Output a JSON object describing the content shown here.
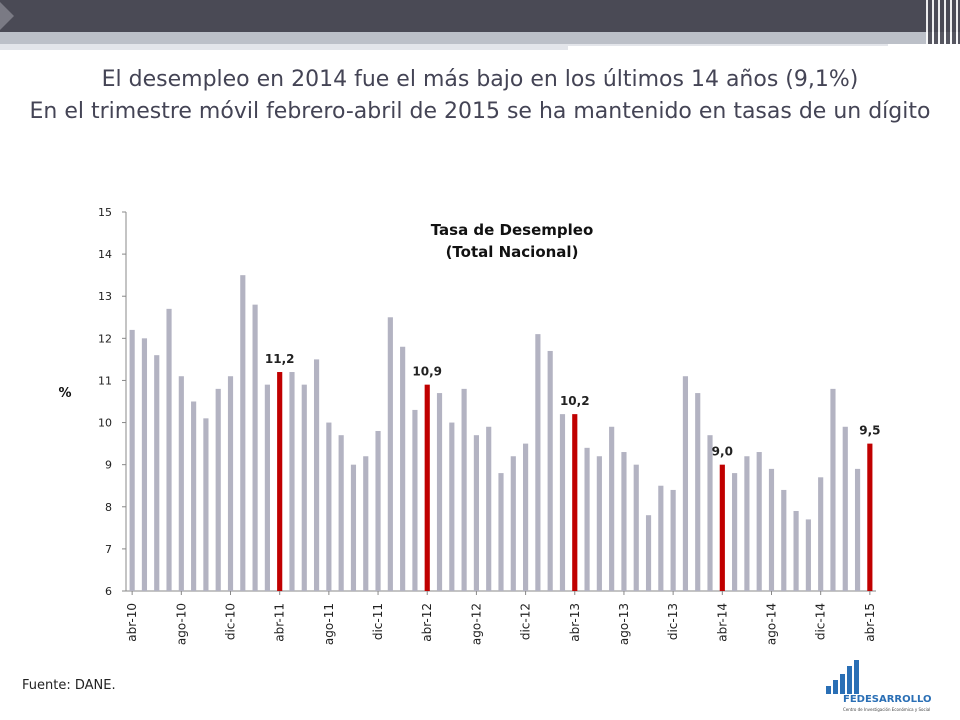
{
  "slide": {
    "title_line1": "El desempleo en 2014 fue el más bajo en los últimos 14 años (9,1%)",
    "title_line2": "En el trimestre móvil febrero-abril de 2015 se ha mantenido en tasas de un dígito",
    "source": "Fuente: DANE.",
    "logo_text": "FEDESARROLLO",
    "logo_subtext": "Centro de Investigación Económica y Social"
  },
  "colors": {
    "bar": "#b3b3c2",
    "highlight": "#c00000",
    "title_text": "#444455"
  },
  "chart_data": {
    "type": "bar",
    "title": "Tasa de Desempleo",
    "subtitle": "(Total Nacional)",
    "ylabel": "%",
    "ylim": [
      6,
      15
    ],
    "yticks": [
      6,
      7,
      8,
      9,
      10,
      11,
      12,
      13,
      14,
      15
    ],
    "x_tick_labels": [
      "abr-10",
      "ago-10",
      "dic-10",
      "abr-11",
      "ago-11",
      "dic-11",
      "abr-12",
      "ago-12",
      "dic-12",
      "abr-13",
      "ago-13",
      "dic-13",
      "abr-14",
      "ago-14",
      "dic-14",
      "abr-15"
    ],
    "x_tick_every": 4,
    "values": [
      12.2,
      12.0,
      11.6,
      12.7,
      11.1,
      10.5,
      10.1,
      10.8,
      11.1,
      13.5,
      12.8,
      10.9,
      11.2,
      11.2,
      10.9,
      11.5,
      10.0,
      9.7,
      9.0,
      9.2,
      9.8,
      12.5,
      11.8,
      10.3,
      10.9,
      10.7,
      10.0,
      10.8,
      9.7,
      9.9,
      8.8,
      9.2,
      9.5,
      12.1,
      11.7,
      10.2,
      10.2,
      9.4,
      9.2,
      9.9,
      9.3,
      9.0,
      7.8,
      8.5,
      8.4,
      11.1,
      10.7,
      9.7,
      9.0,
      8.8,
      9.2,
      9.3,
      8.9,
      8.4,
      7.9,
      7.7,
      8.7,
      10.8,
      9.9,
      8.9,
      9.5
    ],
    "highlighted": [
      {
        "index": 12,
        "label": "11,2"
      },
      {
        "index": 24,
        "label": "10,9"
      },
      {
        "index": 36,
        "label": "10,2"
      },
      {
        "index": 48,
        "label": "9,0"
      },
      {
        "index": 60,
        "label": "9,5"
      }
    ],
    "grid": false,
    "legend": "none"
  }
}
